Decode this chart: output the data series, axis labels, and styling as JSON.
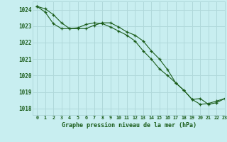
{
  "title": "Graphe pression niveau de la mer (hPa)",
  "background_color": "#c8eef0",
  "grid_color": "#b0d8da",
  "line_color": "#1a5c1a",
  "marker_color": "#1a5c1a",
  "xlim": [
    -0.5,
    23
  ],
  "ylim": [
    1017.6,
    1024.5
  ],
  "yticks": [
    1018,
    1019,
    1020,
    1021,
    1022,
    1023,
    1024
  ],
  "xtick_labels": [
    "0",
    "1",
    "2",
    "3",
    "4",
    "5",
    "6",
    "7",
    "8",
    "9",
    "10",
    "11",
    "12",
    "13",
    "14",
    "15",
    "16",
    "17",
    "18",
    "19",
    "20",
    "21",
    "22",
    "23"
  ],
  "series1_x": [
    0,
    1,
    2,
    3,
    4,
    5,
    6,
    7,
    8,
    9,
    10,
    11,
    12,
    13,
    14,
    15,
    16,
    17,
    18,
    19,
    20,
    21,
    22,
    23
  ],
  "series1_y": [
    1024.2,
    1023.85,
    1023.15,
    1022.85,
    1022.85,
    1022.9,
    1023.1,
    1023.2,
    1023.15,
    1022.95,
    1022.7,
    1022.45,
    1022.1,
    1021.5,
    1021.0,
    1020.4,
    1020.0,
    1019.55,
    1019.1,
    1018.55,
    1018.25,
    1018.3,
    1018.45,
    1018.6
  ],
  "series2_x": [
    0,
    1,
    2,
    3,
    4,
    5,
    6,
    7,
    8,
    9,
    10,
    11,
    12,
    13,
    14,
    15,
    16,
    17,
    18,
    19,
    20,
    21,
    22,
    23
  ],
  "series2_y": [
    1024.2,
    1024.05,
    1023.7,
    1023.2,
    1022.85,
    1022.85,
    1022.85,
    1023.05,
    1023.2,
    1023.2,
    1022.95,
    1022.65,
    1022.45,
    1022.1,
    1021.5,
    1021.0,
    1020.35,
    1019.55,
    1019.1,
    1018.55,
    1018.6,
    1018.25,
    1018.35,
    1018.6
  ]
}
